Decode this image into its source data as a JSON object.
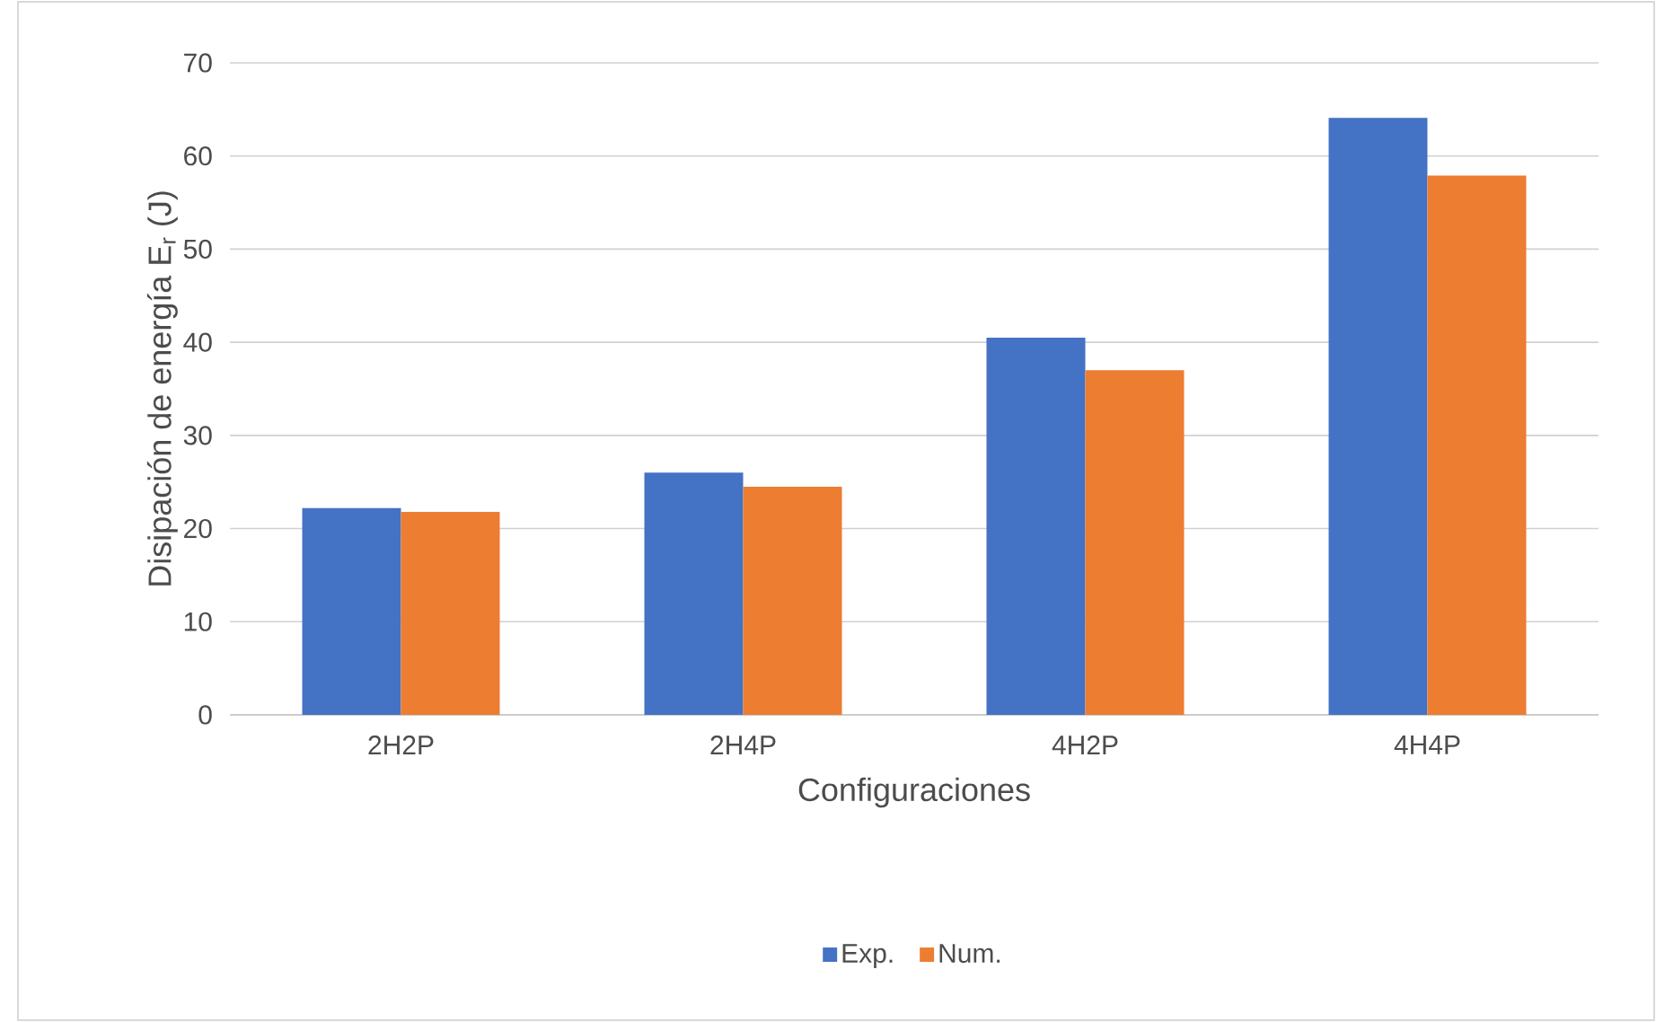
{
  "chart_data": {
    "type": "bar",
    "categories": [
      "2H2P",
      "2H4P",
      "4H2P",
      "4H4P"
    ],
    "xlabel": "Configuraciones",
    "ylabel": "Disipación de energía E$_{r}$ (J)",
    "series": [
      {
        "name": "Exp.",
        "color": "#4472c4",
        "values": [
          22.2,
          26.0,
          40.5,
          64.1
        ]
      },
      {
        "name": "Num.",
        "color": "#ed7d31",
        "values": [
          21.8,
          24.5,
          37.0,
          57.9
        ]
      }
    ],
    "ylim": [
      0,
      70
    ],
    "yticks": [
      0,
      10,
      20,
      30,
      40,
      50,
      60,
      70
    ],
    "grid": "y",
    "legend": "bottom"
  }
}
